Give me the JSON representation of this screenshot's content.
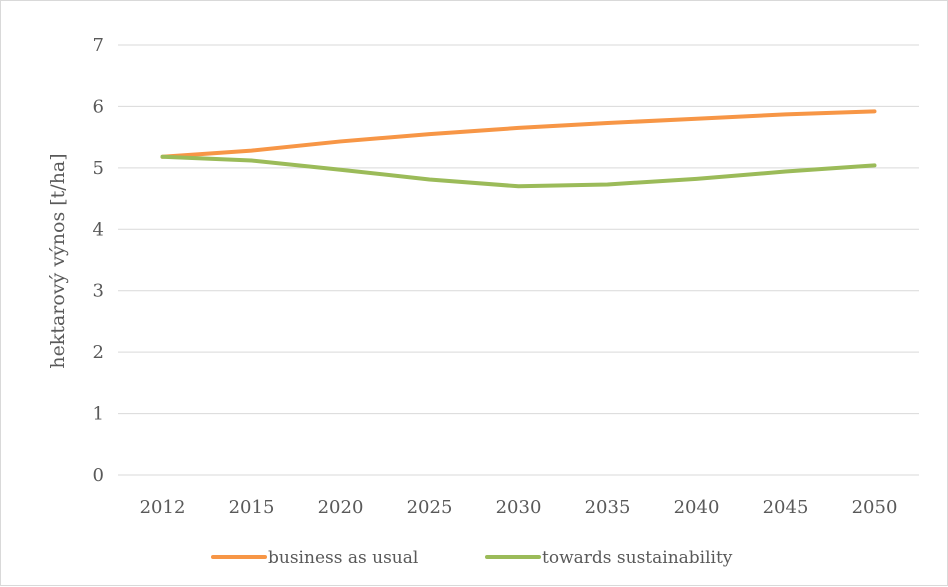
{
  "chart_data": {
    "type": "line",
    "title": "",
    "xlabel": "",
    "ylabel": "hektarový výnos [t/ha]",
    "categories": [
      "2012",
      "2015",
      "2020",
      "2025",
      "2030",
      "2035",
      "2040",
      "2045",
      "2050"
    ],
    "y_ticks": [
      "0",
      "1",
      "2",
      "3",
      "4",
      "5",
      "6",
      "7"
    ],
    "ylim": [
      0,
      7
    ],
    "grid": true,
    "legend_position": "bottom",
    "series": [
      {
        "name": "business as usual",
        "color": "#f79646",
        "values": [
          5.18,
          5.28,
          5.43,
          5.55,
          5.65,
          5.73,
          5.8,
          5.87,
          5.92
        ]
      },
      {
        "name": "towards sustainability",
        "color": "#9bbb59",
        "values": [
          5.18,
          5.12,
          4.97,
          4.81,
          4.7,
          4.73,
          4.82,
          4.94,
          5.04
        ]
      }
    ]
  }
}
